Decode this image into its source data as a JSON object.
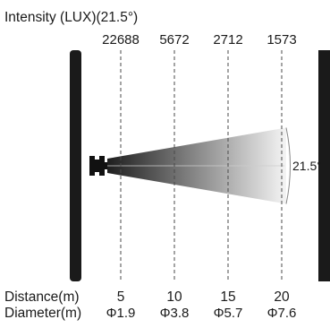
{
  "title": "Intensity (LUX)(21.5°)",
  "beam_angle_label": "21.5°",
  "distance_label": "Distance(m)",
  "diameter_label": "Diameter(m)",
  "distance_max_m": 25,
  "beam_angle_deg": 21.5,
  "points": [
    {
      "distance_m": 5,
      "distance_label": "5",
      "lux": "22688",
      "diameter": "Φ1.9"
    },
    {
      "distance_m": 10,
      "distance_label": "10",
      "lux": "5672",
      "diameter": "Φ3.8"
    },
    {
      "distance_m": 15,
      "distance_label": "15",
      "lux": "2712",
      "diameter": "Φ5.7"
    },
    {
      "distance_m": 20,
      "distance_label": "20",
      "lux": "1573",
      "diameter": "Φ7.6"
    }
  ],
  "colors": {
    "frame": "#1a1a1a",
    "beam_start": "#1e1e1e",
    "beam_end": "#f4f4f4",
    "guide": "#4a4a4a",
    "text": "#1a1a1a"
  }
}
